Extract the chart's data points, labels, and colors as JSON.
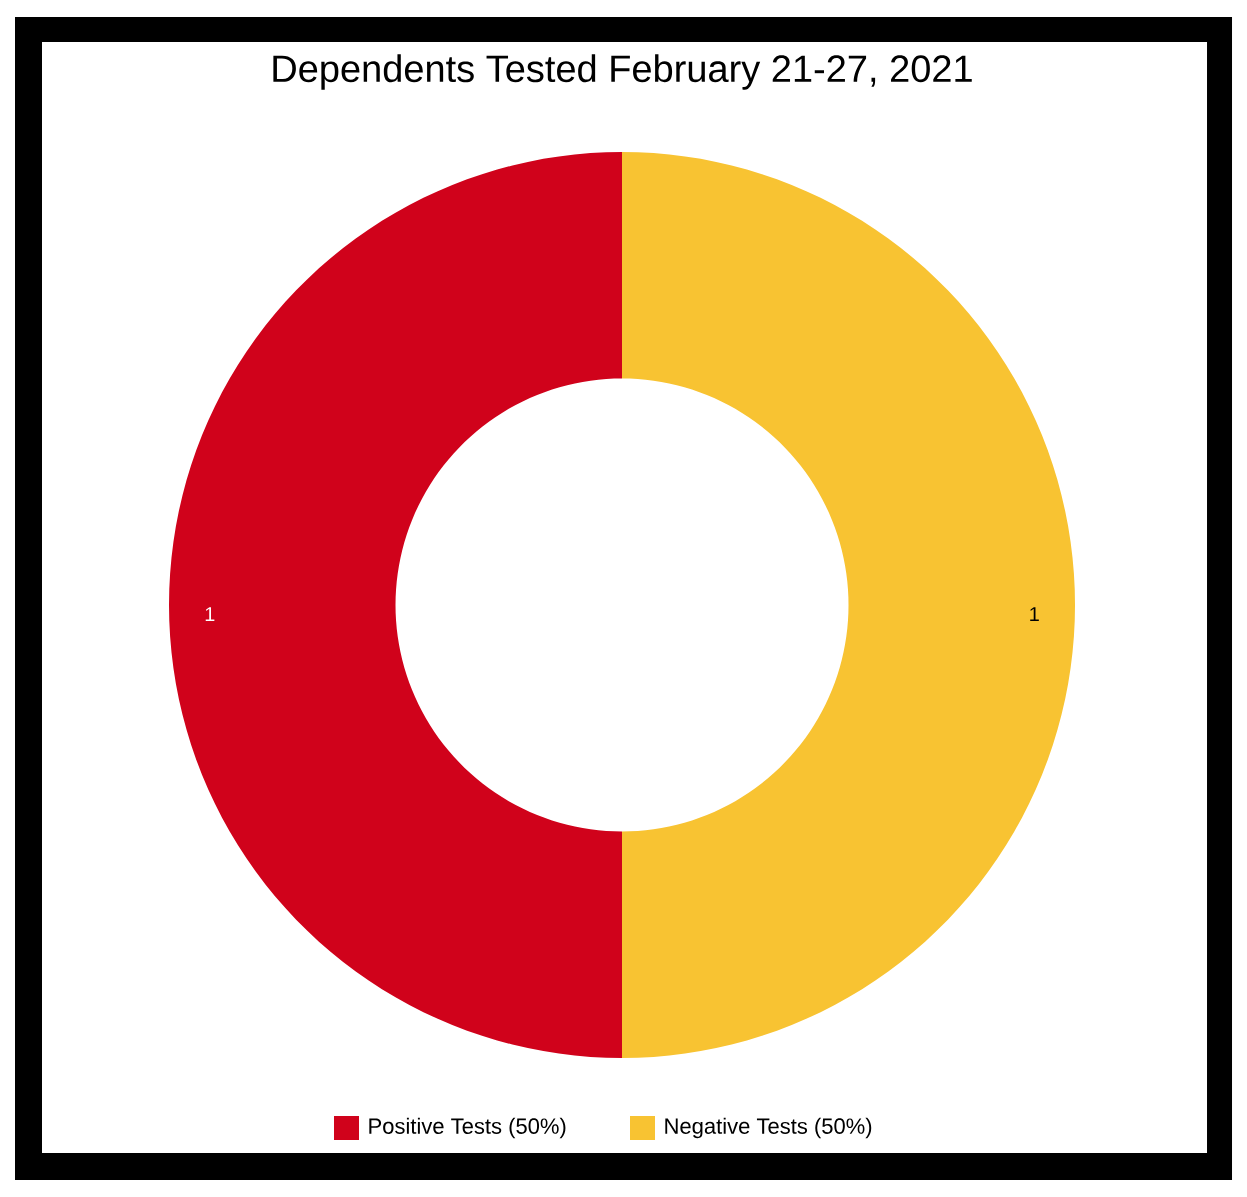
{
  "chart_data": {
    "type": "donut",
    "title": "Dependents Tested February 21-27, 2021",
    "categories": [
      "Positive Tests (50%)",
      "Negative Tests (50%)"
    ],
    "values": [
      1,
      1
    ],
    "colors": [
      "#d0021b",
      "#f8c332"
    ],
    "data_labels": true,
    "legend": "bottom"
  }
}
